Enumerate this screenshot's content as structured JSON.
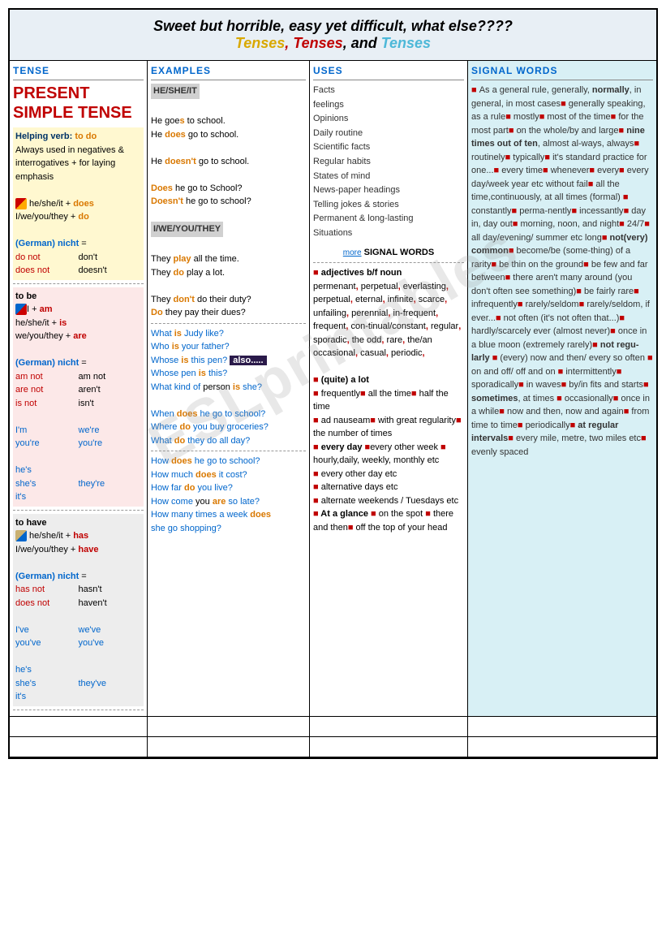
{
  "header": {
    "line1": "Sweet but horrible, easy yet difficult, what else????",
    "tenses1": "Tenses",
    "comma1": ", ",
    "tenses2": "Tenses",
    "comma2": ", and ",
    "tenses3": "Tenses"
  },
  "columns": {
    "c1": "TENSE",
    "c2": "EXAMPLES",
    "c3": "USES",
    "c4": "SIGNAL WORDS"
  },
  "tense": {
    "title": "PRESENT SIMPLE TENSE",
    "help_label": "Helping verb:",
    "help_verb": " to do",
    "help_desc": "Always used in negatives & interrogatives + for laying emphasis",
    "r1a": " he/she/it + ",
    "r1b": "does",
    "r2a": "I/we/you/they + ",
    "r2b": "do",
    "ger": "(German) nicht",
    "eq": " =",
    "g1a": "do not",
    "g1b": "don't",
    "g2a": "does not",
    "g2b": "doesn't",
    "tobe": "to be",
    "tb1a": "I + ",
    "tb1b": "am",
    "tb2a": "he/she/it + ",
    "tb2b": "is",
    "tb3a": "we/you/they + ",
    "tb3b": "are",
    "gb1a": "am not",
    "gb1b": "am not",
    "gb2a": "are not",
    "gb2b": "aren't",
    "gb3a": "is not",
    "gb3b": "isn't",
    "c1a": "I'm",
    "c1b": "we're",
    "c2a": "you're",
    "c2b": "you're",
    "c3a": "he's",
    "c4a": "she's",
    "c4b": "they're",
    "c5a": "it's",
    "tohave": "to have",
    "th1a": " he/she/it + ",
    "th1b": "has",
    "th2a": "I/we/you/they + ",
    "th2b": "have",
    "gh1a": "has not",
    "gh1b": "hasn't",
    "gh2a": "does not",
    "gh2b": "haven't",
    "ch1a": "I've",
    "ch1b": "we've",
    "ch2a": "you've",
    "ch2b": "you've",
    "ch3a": "he's",
    "ch4a": "she's",
    "ch4b": "they've",
    "ch5a": "it's"
  },
  "examples": {
    "h1": "HE/SHE/IT",
    "e1a": "He goe",
    "e1b": "s",
    "e1c": " to school.",
    "e2a": "He ",
    "e2b": "does",
    "e2c": " go to school.",
    "e3a": "He ",
    "e3b": "doesn't",
    "e3c": " go to school.",
    "e4a": "Does",
    "e4b": " he go to School?",
    "e5a": "Doesn't",
    "e5b": " he go to school?",
    "h2": "I/WE/YOU/THEY",
    "e6a": "They ",
    "e6b": "play",
    "e6c": " all the time.",
    "e7a": "They ",
    "e7b": "do",
    "e7c": " play a lot.",
    "e8a": "They ",
    "e8b": "don't",
    "e8c": " do their duty?",
    "e9a": "Do",
    "e9b": " they pay their dues?",
    "q1a": "What ",
    "q1b": "is",
    "q1c": " Judy like?",
    "q2a": "Who ",
    "q2b": "is",
    "q2c": " your father?",
    "q3a": "Whose ",
    "q3b": "is",
    "q3c": " this pen?",
    "q3d": "also.....",
    "q4a": "Whose pen ",
    "q4b": "is",
    "q4c": " this?",
    "q5a": "What kind of ",
    "q5b": "person ",
    "q5c": "is",
    "q5d": " she?",
    "q6a": "When ",
    "q6b": "does",
    "q6c": " he go to school?",
    "q7a": "Where ",
    "q7b": "do",
    "q7c": " you buy groceries?",
    "q8a": "What ",
    "q8b": "do",
    "q8c": " they do all day?",
    "q9a": "How ",
    "q9b": "does",
    "q9c": " he go to school?",
    "q10a": "How much ",
    "q10b": "does",
    "q10c": " it cost?",
    "q11a": "How far ",
    "q11b": "do",
    "q11c": " you live?",
    "q12a": "How come ",
    "q12b": "you ",
    "q12c": "are",
    "q12d": " so late?",
    "q13a": "How many times a week ",
    "q13b": "does",
    "q13c": "she go shopping?"
  },
  "uses": {
    "u1": "Facts",
    "u2": "feelings",
    "u3": "Opinions",
    "u4": "Daily routine",
    "u5": "Scientific facts",
    "u6": "Regular habits",
    "u7": "States of mind",
    "u8": "News-paper headings",
    "u9": "Telling jokes & stories",
    "u10": "Permanent & long-lasting",
    "u11": "   Situations",
    "more": "more",
    "moreSig": " SIGNAL WORDS",
    "adj": "adjectives b/f noun",
    "adjlist": "permenant, perpetual, everlasting, perpetual, eternal, infinite, scarce, unfailing, perennial, in-frequent, frequent, con-tinual/constant, regular, sporadic, the odd, rare, the/an occasional, casual, periodic,",
    "lot": "(quite) a lot",
    "m1": "frequently",
    "m2": "all the time",
    "m3": "half the time",
    "m4": "ad nauseam",
    "m5": "with great regularity",
    "m6": "the number of times",
    "m7": "every day",
    "m8": "every other week",
    "m9": "hourly,daily, weekly, monthly etc",
    "m10": "every other day etc",
    "m11": "alternative days  etc",
    "m12": "alternate weekends / Tuesdays etc",
    "m13": "At a glance",
    "m14": "on the spot",
    "m15": "there and then",
    "m16": "off the top of your head"
  },
  "signal": {
    "text": "As a general rule, generally, |normally|, in general, in most cases■ generally speaking, as a rule■ mostly■ most of the time■ for the most part■ on the whole/by and large■ |nine times out of ten|, almost al-ways, always■ routinely■ typically■ it's standard practice for one...■ every time■ whenever■ every■ every day/week year etc without fail■ all the time,continuously, at all times (formal) ■ constantly■ perma-nently■ incessantly■ day in, day out■ morning, noon, and night■ 24/7■ all day/evening/ summer etc long■ |not(very) common|■ become/be (some-thing) of a rarity■ be thin on the ground■ be few and far between■ there aren't many around (you don't often see something)■ be fairly rare■ infrequently■ rarely/seldom■ rarely/seldom, if ever...■ not often (it's not often that...)■ hardly/scarcely ever (almost never)■ once in a blue moon (extremely rarely)■|not regu-larly| ■ (every) now and then/ every so often ■ on and off/ off and on ■ intermittently■ sporadically■ in waves■ by/in fits and starts■ |sometimes|, at times ■ occasionally■ once in a while■ now and then, now and again■ from time to time■ periodically■|at regular intervals|■ every mile, metre, two miles etc■ evenly spaced"
  },
  "watermark": "ESLprintables"
}
